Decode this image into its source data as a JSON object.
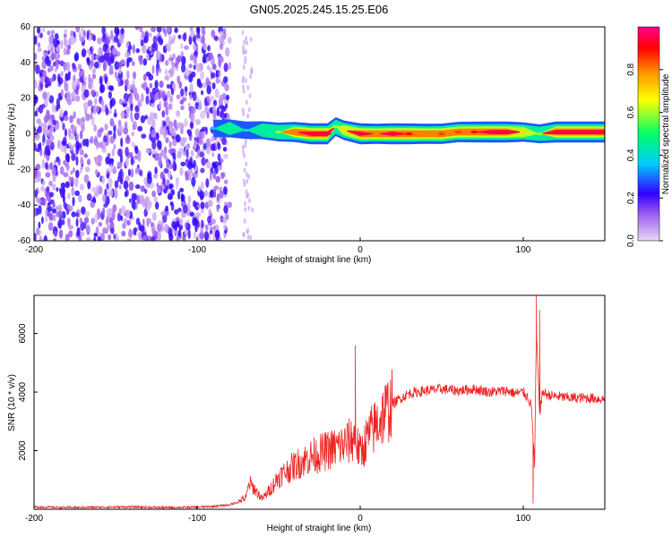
{
  "title": "GN05.2025.245.15.25.E06",
  "chart_data": [
    {
      "type": "heatmap",
      "xlabel": "Height of straight line (km)",
      "ylabel": "Frequency (Hz)",
      "xlim": [
        -200,
        150
      ],
      "ylim": [
        -60,
        60
      ],
      "x_ticks": [
        -200,
        -100,
        0,
        100
      ],
      "y_ticks": [
        -60,
        -40,
        -20,
        0,
        20,
        40,
        60
      ],
      "colorbar": {
        "label": "Normalized spectral amplitude",
        "range": [
          0,
          1
        ],
        "ticks": [
          0.0,
          0.2,
          0.4,
          0.6,
          0.8
        ],
        "colors": [
          "#e8d8f8",
          "#6600ee",
          "#0000ff",
          "#00c8ff",
          "#00ff66",
          "#ffff00",
          "#ff8800",
          "#ff0000",
          "#ff0080"
        ]
      },
      "noise_region_x": [
        -200,
        -80
      ],
      "band": [
        {
          "x": -90,
          "f": 3,
          "amp": 0.35
        },
        {
          "x": -80,
          "f": 3,
          "amp": 0.45
        },
        {
          "x": -70,
          "f": 2,
          "amp": 0.4
        },
        {
          "x": -60,
          "f": 2,
          "amp": 0.45
        },
        {
          "x": -50,
          "f": 1,
          "amp": 0.6
        },
        {
          "x": -40,
          "f": 1,
          "amp": 0.8
        },
        {
          "x": -30,
          "f": 0,
          "amp": 0.95
        },
        {
          "x": -20,
          "f": 0,
          "amp": 0.95
        },
        {
          "x": -15,
          "f": 4,
          "amp": 0.6
        },
        {
          "x": -10,
          "f": 2,
          "amp": 0.7
        },
        {
          "x": 0,
          "f": 0,
          "amp": 0.95
        },
        {
          "x": 10,
          "f": 0,
          "amp": 0.8
        },
        {
          "x": 20,
          "f": 0,
          "amp": 0.95
        },
        {
          "x": 30,
          "f": 0,
          "amp": 0.9
        },
        {
          "x": 40,
          "f": 0,
          "amp": 0.8
        },
        {
          "x": 50,
          "f": 0,
          "amp": 0.85
        },
        {
          "x": 60,
          "f": 1,
          "amp": 0.85
        },
        {
          "x": 70,
          "f": 1,
          "amp": 0.9
        },
        {
          "x": 80,
          "f": 1,
          "amp": 0.95
        },
        {
          "x": 90,
          "f": 1,
          "amp": 0.95
        },
        {
          "x": 100,
          "f": 1,
          "amp": 0.7
        },
        {
          "x": 110,
          "f": 0,
          "amp": 0.6
        },
        {
          "x": 120,
          "f": 1,
          "amp": 0.95
        },
        {
          "x": 130,
          "f": 1,
          "amp": 0.95
        },
        {
          "x": 140,
          "f": 1,
          "amp": 0.95
        },
        {
          "x": 150,
          "f": 1,
          "amp": 0.95
        }
      ]
    },
    {
      "type": "line",
      "xlabel": "Height of straight line (km)",
      "ylabel": "SNR (10 * v/v)",
      "xlim": [
        -200,
        150
      ],
      "ylim": [
        0,
        7300
      ],
      "x_ticks": [
        -200,
        -100,
        0,
        100
      ],
      "y_ticks": [
        2000,
        4000,
        6000
      ],
      "color": "#ee2222",
      "x": [
        -200,
        -180,
        -160,
        -140,
        -120,
        -100,
        -90,
        -80,
        -75,
        -70,
        -68,
        -65,
        -60,
        -55,
        -50,
        -45,
        -40,
        -35,
        -30,
        -25,
        -20,
        -15,
        -10,
        -7,
        -5,
        -3,
        -2,
        0,
        5,
        10,
        15,
        20,
        25,
        30,
        35,
        40,
        50,
        60,
        70,
        80,
        90,
        95,
        100,
        103,
        105,
        107,
        108,
        110,
        112,
        115,
        120,
        130,
        140,
        150
      ],
      "y": [
        80,
        60,
        70,
        80,
        60,
        70,
        100,
        150,
        250,
        400,
        900,
        700,
        350,
        700,
        1100,
        1300,
        1500,
        1650,
        1800,
        1900,
        2000,
        2100,
        2200,
        2300,
        2400,
        2500,
        2200,
        1900,
        2500,
        2900,
        3300,
        3600,
        3800,
        3950,
        4000,
        4050,
        4100,
        4050,
        4100,
        4000,
        4050,
        3950,
        4000,
        3800,
        3500,
        1500,
        6000,
        3300,
        4000,
        3900,
        3850,
        3800,
        3800,
        3750
      ],
      "spikes": [
        {
          "x": -3,
          "y": 5600
        },
        {
          "x": 108,
          "y": 7300
        },
        {
          "x": 106,
          "y": 200
        },
        {
          "x": 110,
          "y": 6800
        }
      ]
    }
  ]
}
